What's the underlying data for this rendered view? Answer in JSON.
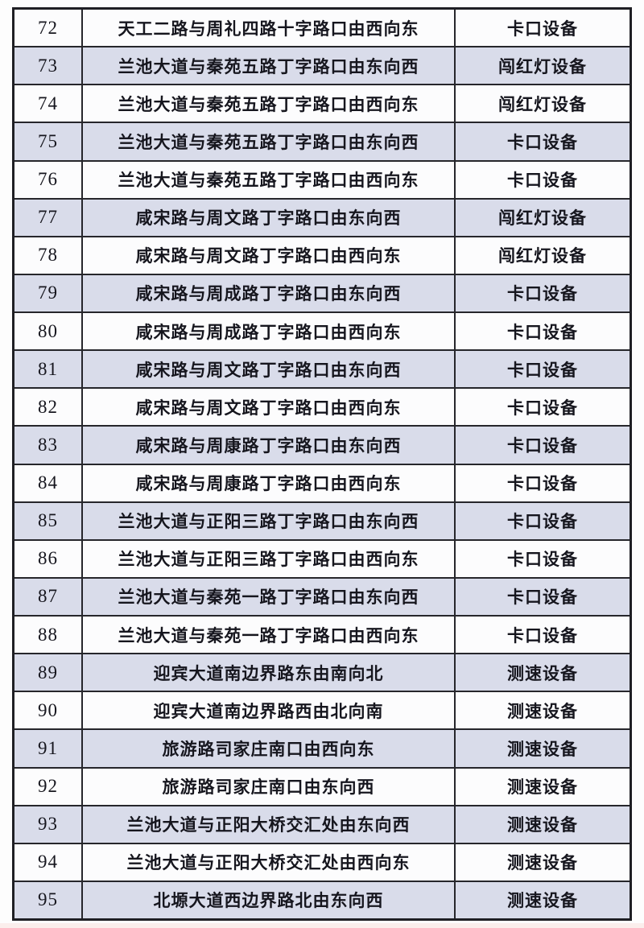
{
  "page": {
    "background": "#fdfdfd"
  },
  "colors": {
    "row_alt_background": "#d9dcea",
    "row_plain_background": "#fcfcfd",
    "table_border": "#26262b",
    "text": "#16161e",
    "bottom_strip": "#fbeeec"
  },
  "table": {
    "rows": [
      {
        "no": "72",
        "location": "天工二路与周礼四路十字路口由西向东",
        "device": "卡口设备"
      },
      {
        "no": "73",
        "location": "兰池大道与秦苑五路丁字路口由东向西",
        "device": "闯红灯设备"
      },
      {
        "no": "74",
        "location": "兰池大道与秦苑五路丁字路口由西向东",
        "device": "闯红灯设备"
      },
      {
        "no": "75",
        "location": "兰池大道与秦苑五路丁字路口由东向西",
        "device": "卡口设备"
      },
      {
        "no": "76",
        "location": "兰池大道与秦苑五路丁字路口由西向东",
        "device": "卡口设备"
      },
      {
        "no": "77",
        "location": "咸宋路与周文路丁字路口由东向西",
        "device": "闯红灯设备"
      },
      {
        "no": "78",
        "location": "咸宋路与周文路丁字路口由西向东",
        "device": "闯红灯设备"
      },
      {
        "no": "79",
        "location": "咸宋路与周成路丁字路口由东向西",
        "device": "卡口设备"
      },
      {
        "no": "80",
        "location": "咸宋路与周成路丁字路口由西向东",
        "device": "卡口设备"
      },
      {
        "no": "81",
        "location": "咸宋路与周文路丁字路口由东向西",
        "device": "卡口设备"
      },
      {
        "no": "82",
        "location": "咸宋路与周文路丁字路口由西向东",
        "device": "卡口设备"
      },
      {
        "no": "83",
        "location": "咸宋路与周康路丁字路口由东向西",
        "device": "卡口设备"
      },
      {
        "no": "84",
        "location": "咸宋路与周康路丁字路口由西向东",
        "device": "卡口设备"
      },
      {
        "no": "85",
        "location": "兰池大道与正阳三路丁字路口由东向西",
        "device": "卡口设备"
      },
      {
        "no": "86",
        "location": "兰池大道与正阳三路丁字路口由西向东",
        "device": "卡口设备"
      },
      {
        "no": "87",
        "location": "兰池大道与秦苑一路丁字路口由东向西",
        "device": "卡口设备"
      },
      {
        "no": "88",
        "location": "兰池大道与秦苑一路丁字路口由西向东",
        "device": "卡口设备"
      },
      {
        "no": "89",
        "location": "迎宾大道南边界路东由南向北",
        "device": "测速设备"
      },
      {
        "no": "90",
        "location": "迎宾大道南边界路西由北向南",
        "device": "测速设备"
      },
      {
        "no": "91",
        "location": "旅游路司家庄南口由西向东",
        "device": "测速设备"
      },
      {
        "no": "92",
        "location": "旅游路司家庄南口由东向西",
        "device": "测速设备"
      },
      {
        "no": "93",
        "location": "兰池大道与正阳大桥交汇处由东向西",
        "device": "测速设备"
      },
      {
        "no": "94",
        "location": "兰池大道与正阳大桥交汇处由西向东",
        "device": "测速设备"
      },
      {
        "no": "95",
        "location": "北塬大道西边界路北由东向西",
        "device": "测速设备"
      }
    ]
  }
}
